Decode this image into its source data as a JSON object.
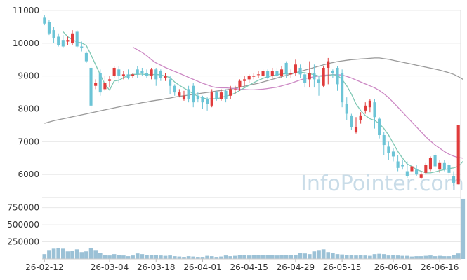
{
  "chart_data": {
    "type": "candlestick",
    "watermark": "InfoPointer.com",
    "colors": {
      "up": "#e03b3b",
      "down": "#6cc4d6",
      "ma_short": "#7fc8b4",
      "ma_mid": "#cc88c4",
      "ma_long": "#999999",
      "volume": "#9bc1d6",
      "grid": "#e8e8e8"
    },
    "price_axis": {
      "ylim": [
        5300,
        11000
      ],
      "ticks": [
        6000,
        7000,
        8000,
        9000,
        10000,
        11000
      ],
      "tick_labels": [
        "6000",
        "7000",
        "8000",
        "9000",
        "10000",
        "11000"
      ]
    },
    "volume_axis": {
      "ylim": [
        0,
        900000
      ],
      "ticks": [
        250000,
        500000,
        750000
      ],
      "tick_labels": [
        "250000",
        "500000",
        "750000"
      ]
    },
    "x_tick_labels": [
      {
        "label": "26-02-12",
        "index": 0
      },
      {
        "label": "26-03-04",
        "index": 14
      },
      {
        "label": "26-03-18",
        "index": 24
      },
      {
        "label": "26-04-01",
        "index": 34
      },
      {
        "label": "26-04-15",
        "index": 44
      },
      {
        "label": "26-04-29",
        "index": 54
      },
      {
        "label": "26-05-15",
        "index": 64
      },
      {
        "label": "26-06-01",
        "index": 75
      },
      {
        "label": "26-06-16",
        "index": 85
      }
    ],
    "candles": [
      [
        10800,
        10600,
        10850,
        10550
      ],
      [
        10650,
        10300,
        10700,
        10250
      ],
      [
        10400,
        10150,
        10500,
        10000
      ],
      [
        10200,
        9950,
        10300,
        9900
      ],
      [
        10100,
        9900,
        10250,
        9850
      ],
      [
        10050,
        10100,
        10200,
        9950
      ],
      [
        10000,
        10300,
        10400,
        9950
      ],
      [
        10350,
        9900,
        10400,
        9850
      ],
      [
        9900,
        9850,
        10050,
        9750
      ],
      [
        9700,
        9450,
        9750,
        9400
      ],
      [
        9250,
        8100,
        9300,
        7850
      ],
      [
        8700,
        8800,
        8900,
        8600
      ],
      [
        9100,
        8500,
        9200,
        8400
      ],
      [
        8600,
        8800,
        9000,
        8550
      ],
      [
        8850,
        8900,
        9000,
        8650
      ],
      [
        9000,
        9250,
        9300,
        8950
      ],
      [
        9200,
        9000,
        9300,
        8800
      ],
      [
        9000,
        9050,
        9150,
        8900
      ],
      [
        9050,
        8950,
        9200,
        8900
      ],
      [
        9000,
        9050,
        9100,
        8950
      ],
      [
        9200,
        9050,
        9300,
        8950
      ],
      [
        9150,
        9100,
        9250,
        9000
      ],
      [
        9100,
        9000,
        9200,
        8950
      ],
      [
        9000,
        9200,
        9250,
        8900
      ],
      [
        9200,
        8900,
        9250,
        8700
      ],
      [
        9150,
        8950,
        9200,
        8850
      ],
      [
        8950,
        9000,
        9100,
        8850
      ],
      [
        8900,
        8700,
        9000,
        8450
      ],
      [
        8700,
        8500,
        8750,
        8400
      ],
      [
        8400,
        8500,
        8600,
        8350
      ],
      [
        8300,
        8400,
        8550,
        8250
      ],
      [
        8600,
        8300,
        8700,
        8200
      ],
      [
        8700,
        8200,
        8800,
        8050
      ],
      [
        8400,
        8300,
        8500,
        8200
      ],
      [
        8350,
        8200,
        8400,
        8000
      ],
      [
        8300,
        8150,
        8350,
        7950
      ],
      [
        8100,
        8500,
        8600,
        8050
      ],
      [
        8500,
        8300,
        8550,
        8250
      ],
      [
        8300,
        8500,
        8600,
        8250
      ],
      [
        8550,
        8300,
        8600,
        8200
      ],
      [
        8400,
        8600,
        8700,
        8300
      ],
      [
        8600,
        8600,
        8700,
        8450
      ],
      [
        8650,
        8850,
        8900,
        8550
      ],
      [
        8850,
        8900,
        9000,
        8700
      ],
      [
        8900,
        9000,
        9050,
        8800
      ],
      [
        9000,
        9000,
        9100,
        8900
      ],
      [
        9050,
        9050,
        9150,
        8950
      ],
      [
        9000,
        9150,
        9200,
        8950
      ],
      [
        9150,
        8950,
        9200,
        8900
      ],
      [
        9000,
        9150,
        9250,
        8950
      ],
      [
        9150,
        9000,
        9250,
        8950
      ],
      [
        9000,
        9200,
        9300,
        8950
      ],
      [
        9400,
        9050,
        9450,
        8950
      ],
      [
        9050,
        9100,
        9200,
        8950
      ],
      [
        9100,
        9350,
        9500,
        9000
      ],
      [
        9250,
        9050,
        9350,
        8950
      ],
      [
        9050,
        8800,
        9100,
        8650
      ],
      [
        8900,
        9100,
        9450,
        8650
      ],
      [
        9100,
        8900,
        9350,
        8650
      ],
      [
        8900,
        8800,
        9000,
        8400
      ],
      [
        8700,
        9250,
        9300,
        8650
      ],
      [
        9250,
        9450,
        9550,
        8750
      ],
      [
        9150,
        9100,
        9200,
        8950
      ],
      [
        9250,
        8750,
        9300,
        8550
      ],
      [
        9100,
        8200,
        9200,
        8050
      ],
      [
        8150,
        7850,
        8350,
        7650
      ],
      [
        7800,
        7450,
        7850,
        7350
      ],
      [
        7300,
        7450,
        7750,
        7250
      ],
      [
        7650,
        7800,
        7900,
        7550
      ],
      [
        7950,
        8100,
        8200,
        7850
      ],
      [
        8050,
        8250,
        8300,
        7900
      ],
      [
        8200,
        7750,
        8300,
        7400
      ],
      [
        7700,
        7200,
        7750,
        7100
      ],
      [
        7200,
        6900,
        7300,
        6600
      ],
      [
        6850,
        6650,
        7000,
        6450
      ],
      [
        6700,
        6550,
        6800,
        6400
      ],
      [
        6400,
        6200,
        6600,
        6100
      ],
      [
        6300,
        6250,
        6450,
        6150
      ],
      [
        6100,
        5950,
        6400,
        5900
      ],
      [
        6100,
        6250,
        6300,
        6050
      ],
      [
        6150,
        6000,
        6300,
        5950
      ],
      [
        5900,
        6000,
        6100,
        5850
      ],
      [
        6050,
        6300,
        6350,
        6000
      ],
      [
        6150,
        6500,
        6550,
        6100
      ],
      [
        6600,
        6250,
        6650,
        6150
      ],
      [
        6150,
        6350,
        6450,
        6050
      ],
      [
        6350,
        6150,
        6450,
        6100
      ],
      [
        6300,
        6050,
        6400,
        5900
      ],
      [
        5950,
        5750,
        6100,
        5650
      ],
      [
        5700,
        7500,
        7500,
        5700
      ]
    ],
    "volume": [
      70000,
      130000,
      150000,
      160000,
      150000,
      110000,
      120000,
      140000,
      100000,
      110000,
      160000,
      130000,
      90000,
      60000,
      50000,
      70000,
      60000,
      50000,
      40000,
      50000,
      80000,
      70000,
      60000,
      55000,
      60000,
      50000,
      45000,
      50000,
      40000,
      35000,
      30000,
      40000,
      35000,
      30000,
      30000,
      45000,
      40000,
      30000,
      35000,
      50000,
      40000,
      45000,
      55000,
      60000,
      50000,
      55000,
      60000,
      55000,
      60000,
      55000,
      50000,
      55000,
      60000,
      55000,
      60000,
      90000,
      80000,
      70000,
      110000,
      130000,
      140000,
      100000,
      90000,
      70000,
      65000,
      60000,
      55000,
      50000,
      60000,
      50000,
      45000,
      70000,
      75000,
      70000,
      50000,
      55000,
      50000,
      45000,
      45000,
      35000,
      40000,
      40000,
      45000,
      50000,
      40000,
      45000,
      40000,
      40000,
      60000,
      80000,
      880000
    ],
    "ma_short": [
      null,
      null,
      null,
      null,
      10350,
      10200,
      10110,
      10040,
      10010,
      9930,
      9650,
      9340,
      9040,
      8750,
      8570,
      8850,
      8870,
      8950,
      9020,
      9050,
      9050,
      9060,
      9040,
      9040,
      9050,
      9030,
      9000,
      8950,
      8820,
      8720,
      8630,
      8550,
      8460,
      8380,
      8340,
      8300,
      8310,
      8310,
      8340,
      8390,
      8420,
      8480,
      8560,
      8640,
      8720,
      8800,
      8870,
      8930,
      8980,
      9010,
      9040,
      9060,
      9070,
      9080,
      9100,
      9120,
      9100,
      9070,
      9040,
      9000,
      8990,
      9020,
      9040,
      9020,
      8900,
      8700,
      8450,
      8150,
      7950,
      7800,
      7700,
      7650,
      7550,
      7400,
      7200,
      6950,
      6700,
      6500,
      6320,
      6250,
      6150,
      6100,
      6050,
      6050,
      6080,
      6120,
      6150,
      6180,
      6200,
      6250,
      6400
    ],
    "ma_mid": [
      null,
      null,
      null,
      null,
      null,
      null,
      null,
      null,
      null,
      null,
      null,
      null,
      null,
      null,
      null,
      null,
      null,
      null,
      null,
      9880,
      9800,
      9720,
      9620,
      9500,
      9400,
      9330,
      9260,
      9200,
      9140,
      9080,
      9020,
      8960,
      8900,
      8840,
      8780,
      8730,
      8680,
      8650,
      8640,
      8640,
      8630,
      8620,
      8600,
      8590,
      8580,
      8580,
      8590,
      8600,
      8620,
      8640,
      8660,
      8700,
      8740,
      8780,
      8830,
      8880,
      8920,
      8950,
      8980,
      9000,
      9020,
      9030,
      9040,
      9040,
      9030,
      8990,
      8940,
      8880,
      8820,
      8760,
      8700,
      8640,
      8560,
      8460,
      8340,
      8200,
      8050,
      7900,
      7750,
      7600,
      7450,
      7300,
      7150,
      7020,
      6900,
      6800,
      6700,
      6620,
      6560,
      6520,
      6500
    ],
    "ma_long": [
      7560,
      7600,
      7640,
      7670,
      7700,
      7730,
      7760,
      7790,
      7820,
      7850,
      7880,
      7910,
      7940,
      7970,
      8000,
      8030,
      8060,
      8090,
      8110,
      8140,
      8160,
      8190,
      8210,
      8240,
      8260,
      8280,
      8310,
      8330,
      8360,
      8380,
      8400,
      8420,
      8440,
      8460,
      8480,
      8500,
      8520,
      8540,
      8560,
      8580,
      8600,
      8630,
      8660,
      8690,
      8720,
      8750,
      8780,
      8820,
      8860,
      8900,
      8940,
      8980,
      9020,
      9060,
      9100,
      9140,
      9180,
      9220,
      9260,
      9300,
      9340,
      9380,
      9410,
      9440,
      9460,
      9480,
      9500,
      9510,
      9520,
      9530,
      9540,
      9550,
      9550,
      9530,
      9510,
      9480,
      9450,
      9420,
      9390,
      9360,
      9330,
      9300,
      9270,
      9240,
      9210,
      9180,
      9140,
      9100,
      9050,
      8980,
      8900
    ]
  }
}
